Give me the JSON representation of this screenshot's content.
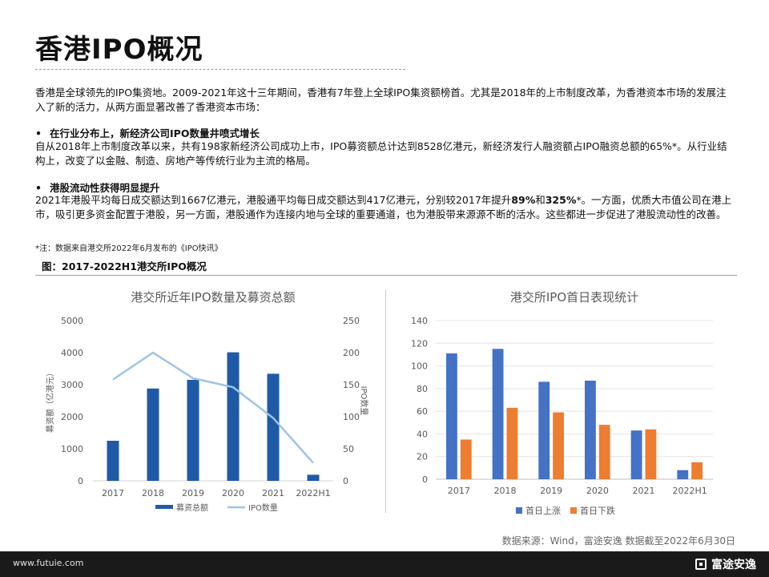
{
  "page": {
    "title": "香港IPO概况",
    "intro": "香港是全球领先的IPO集资地。2009-2021年这十三年期间，香港有7年登上全球IPO集资额榜首。尤其是2018年的上市制度改革，为香港资本市场的发展注入了新的活力，从两方面显著改善了香港资本市场：",
    "bullet1_title": "在行业分布上，新经济公司IPO数量井喷式增长",
    "bullet1_text": "自从2018年上市制度改革以来，共有198家新经济公司成功上市，IPO募资额总计达到8528亿港元，新经济发行人融资额占IPO融资总额的65%*。从行业结构上，改变了以金融、制造、房地产等传统行业为主流的格局。",
    "bullet2_title": "港股流动性获得明显提升",
    "bullet2_text_a": "2021年港股平均每日成交额达到1667亿港元，港股通平均每日成交额达到417亿港元，分别较2017年提升",
    "bullet2_bold1": "89%",
    "bullet2_and": "和",
    "bullet2_bold2": "325%",
    "bullet2_text_b": "*。一方面，优质大市值公司在港上市，吸引更多资金配置于港股，另一方面，港股通作为连接内地与全球的重要通道，也为港股带来源源不断的活水。这些都进一步促进了港股流动性的改善。",
    "bullet_marker": "•",
    "note": "*注：数据来自港交所2022年6月发布的《IPO快讯》",
    "figure_label": "图：2017-2022H1港交所IPO概况",
    "source": "数据来源：Wind，富途安逸   数据截至2022年6月30日",
    "footer_url": "www.futuie.com",
    "footer_brand": "富途安逸"
  },
  "chart_data": [
    {
      "type": "bar+line",
      "title": "港交所近年IPO数量及募资总额",
      "categories": [
        "2017",
        "2018",
        "2019",
        "2020",
        "2021",
        "2022H1"
      ],
      "ylabel_left": "募资额（亿港元）",
      "ylabel_right": "IPO数量",
      "ylim_left": [
        0,
        5000
      ],
      "yticks_left": [
        "0",
        "1000",
        "2000",
        "3000",
        "4000",
        "5000"
      ],
      "ylim_right": [
        0,
        250
      ],
      "yticks_right": [
        "0",
        "50",
        "100",
        "150",
        "200",
        "250"
      ],
      "series": [
        {
          "name": "募资总额",
          "type": "bar",
          "axis": "left",
          "values": [
            1250,
            2880,
            3150,
            4010,
            3340,
            190
          ],
          "color": "#1f5aa6"
        },
        {
          "name": "IPO数量",
          "type": "line",
          "axis": "right",
          "values": [
            158,
            200,
            160,
            146,
            98,
            28
          ],
          "color": "#9dc3e6"
        }
      ],
      "legend_position": "bottom",
      "grid": false
    },
    {
      "type": "bar",
      "title": "港交所IPO首日表现统计",
      "categories": [
        "2017",
        "2018",
        "2019",
        "2020",
        "2021",
        "2022H1"
      ],
      "ylim": [
        0,
        140
      ],
      "yticks": [
        "0",
        "20",
        "40",
        "60",
        "80",
        "100",
        "120",
        "140"
      ],
      "series": [
        {
          "name": "首日上涨",
          "values": [
            111,
            115,
            86,
            87,
            43,
            8
          ],
          "color": "#4472c4"
        },
        {
          "name": "首日下跌",
          "values": [
            35,
            63,
            59,
            48,
            44,
            15
          ],
          "color": "#ed7d31"
        }
      ],
      "legend_position": "bottom",
      "grid": true
    }
  ]
}
